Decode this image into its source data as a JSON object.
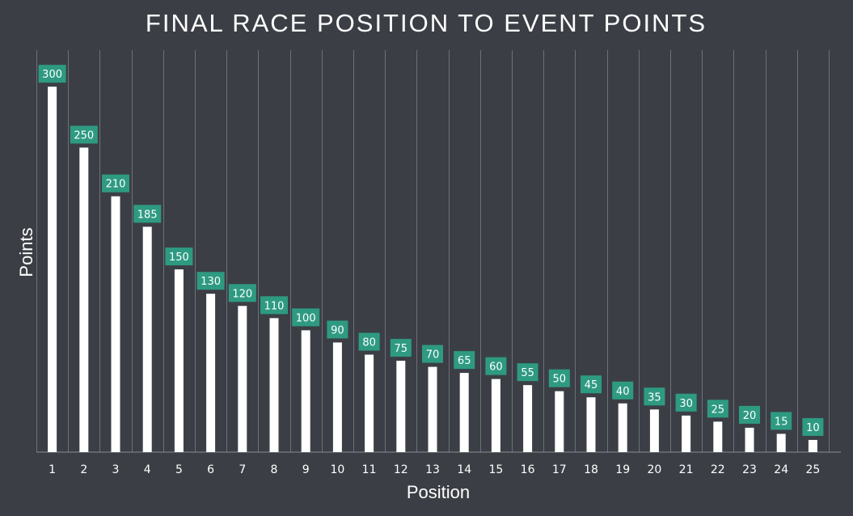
{
  "chart_data": {
    "type": "bar",
    "title": "FINAL RACE POSITION TO EVENT POINTS",
    "xlabel": "Position",
    "ylabel": "Points",
    "categories": [
      "1",
      "2",
      "3",
      "4",
      "5",
      "6",
      "7",
      "8",
      "9",
      "10",
      "11",
      "12",
      "13",
      "14",
      "15",
      "16",
      "17",
      "18",
      "19",
      "20",
      "21",
      "22",
      "23",
      "24",
      "25"
    ],
    "values": [
      300,
      250,
      210,
      185,
      150,
      130,
      120,
      110,
      100,
      90,
      80,
      75,
      70,
      65,
      60,
      55,
      50,
      45,
      40,
      35,
      30,
      25,
      20,
      15,
      10
    ],
    "ylim": [
      0,
      330
    ],
    "grid": "vertical",
    "data_labels": true,
    "colors": {
      "background": "#3b3f45",
      "bar": "#ffffff",
      "label_box": "#2e9a82",
      "grid": "#6e7278",
      "text": "#ffffff"
    }
  }
}
